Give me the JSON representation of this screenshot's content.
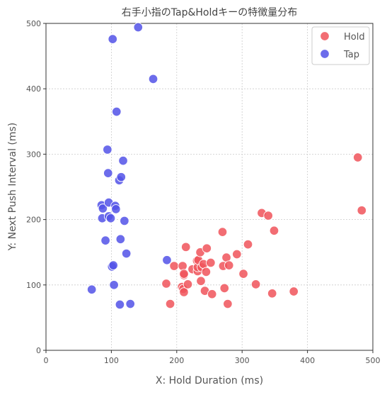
{
  "chart_data": {
    "type": "scatter",
    "title": "右手小指のTap&Holdキーの特徴量分布",
    "xlabel": "X: Hold Duration (ms)",
    "ylabel": "Y: Next Push Interval (ms)",
    "xlim": [
      0,
      500
    ],
    "ylim": [
      0,
      500
    ],
    "xticks": [
      "0",
      "100",
      "200",
      "300",
      "400",
      "500"
    ],
    "yticks": [
      "0",
      "100",
      "200",
      "300",
      "400",
      "500"
    ],
    "grid": true,
    "legend_position": "top-right",
    "series": [
      {
        "name": "Hold",
        "color": "#f0535b",
        "points": [
          [
            184,
            102
          ],
          [
            190,
            71
          ],
          [
            196,
            129
          ],
          [
            208,
            97
          ],
          [
            209,
            129
          ],
          [
            210,
            94
          ],
          [
            211,
            115
          ],
          [
            211,
            117
          ],
          [
            211,
            89
          ],
          [
            214,
            158
          ],
          [
            217,
            101
          ],
          [
            224,
            124
          ],
          [
            231,
            137
          ],
          [
            232,
            121
          ],
          [
            232,
            127
          ],
          [
            233,
            138
          ],
          [
            236,
            150
          ],
          [
            237,
            106
          ],
          [
            238,
            127
          ],
          [
            241,
            132
          ],
          [
            243,
            91
          ],
          [
            245,
            120
          ],
          [
            246,
            156
          ],
          [
            252,
            134
          ],
          [
            254,
            86
          ],
          [
            270,
            181
          ],
          [
            271,
            129
          ],
          [
            273,
            95
          ],
          [
            276,
            142
          ],
          [
            278,
            71
          ],
          [
            280,
            130
          ],
          [
            292,
            147
          ],
          [
            302,
            117
          ],
          [
            309,
            162
          ],
          [
            321,
            101
          ],
          [
            330,
            210
          ],
          [
            340,
            206
          ],
          [
            346,
            87
          ],
          [
            349,
            183
          ],
          [
            379,
            90
          ],
          [
            477,
            295
          ],
          [
            483,
            214
          ]
        ]
      },
      {
        "name": "Tap",
        "color": "#5252e8",
        "points": [
          [
            70,
            93
          ],
          [
            85,
            222
          ],
          [
            86,
            202
          ],
          [
            87,
            217
          ],
          [
            91,
            168
          ],
          [
            94,
            307
          ],
          [
            95,
            271
          ],
          [
            96,
            205
          ],
          [
            96,
            226
          ],
          [
            99,
            202
          ],
          [
            101,
            128
          ],
          [
            103,
            130
          ],
          [
            102,
            476
          ],
          [
            104,
            100
          ],
          [
            106,
            221
          ],
          [
            107,
            216
          ],
          [
            108,
            365
          ],
          [
            112,
            260
          ],
          [
            113,
            70
          ],
          [
            114,
            170
          ],
          [
            115,
            265
          ],
          [
            118,
            290
          ],
          [
            120,
            198
          ],
          [
            123,
            148
          ],
          [
            129,
            71
          ],
          [
            141,
            494
          ],
          [
            164,
            415
          ],
          [
            185,
            138
          ]
        ]
      }
    ]
  }
}
